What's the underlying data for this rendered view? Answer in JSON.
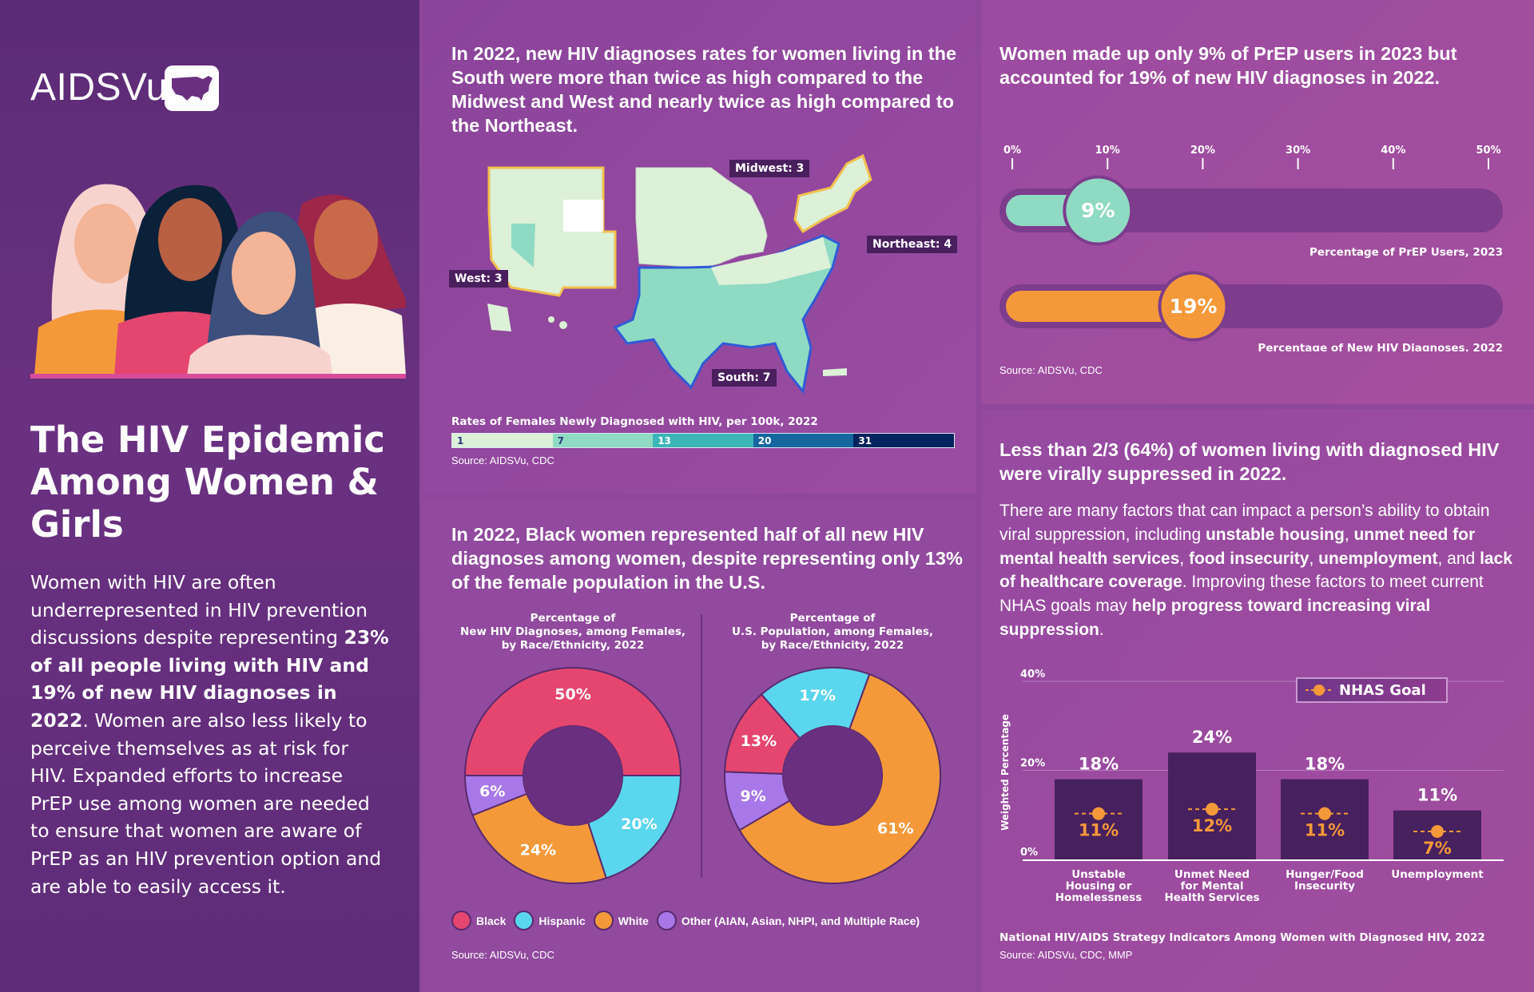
{
  "brand": {
    "logo_text": "AIDSVu",
    "logo_icon": "us-map-icon"
  },
  "left": {
    "title": "The HIV Epidemic Among Women & Girls",
    "paragraph": [
      {
        "text": "Women with HIV are often underrepresented in HIV prevention discussions despite representing ",
        "bold": false
      },
      {
        "text": "23% of all people living with HIV and 19% of new HIV diagnoses in 2022",
        "bold": true
      },
      {
        "text": ". Women are also less likely to perceive themselves as at risk for HIV. Expanded efforts to increase PrEP use among women are needed to ensure that women are aware of PrEP as an HIV prevention option and are able to easily access it.",
        "bold": false
      }
    ]
  },
  "map_section": {
    "heading": "In 2022, new HIV diagnoses rates for women living in the South were more than twice as high compared to the Midwest and West and nearly twice as high compared to the Northeast.",
    "regions": {
      "west": "West: 3",
      "midwest": "Midwest: 3",
      "northeast": "Northeast: 4",
      "south": "South: 7"
    },
    "legend_title": "Rates of Females Newly Diagnosed with HIV, per 100k, 2022",
    "legend": [
      {
        "label": "1",
        "color": "#dcf1d8",
        "text_color": "#2a3a80"
      },
      {
        "label": "7",
        "color": "#8fdac3",
        "text_color": "#2a3a80"
      },
      {
        "label": "13",
        "color": "#3db6b8",
        "text_color": "#ffffff"
      },
      {
        "label": "20",
        "color": "#1667a0",
        "text_color": "#ffffff"
      },
      {
        "label": "31",
        "color": "#03235e",
        "text_color": "#ffffff"
      }
    ],
    "source": "Source: AIDSVu, CDC"
  },
  "race_section": {
    "heading": "In 2022, Black women represented half of all new HIV diagnoses among women, despite representing only 13% of the female population in the U.S.",
    "legend": [
      {
        "label": "Black",
        "color": "#e5466f"
      },
      {
        "label": "Hispanic",
        "color": "#5ad6ee"
      },
      {
        "label": "White",
        "color": "#f4993a"
      },
      {
        "label": "Other (AIAN, Asian, NHPI, and Multiple Race)",
        "color": "#a878e8"
      }
    ],
    "source": "Source: AIDSVu, CDC"
  },
  "prep_section": {
    "heading": "Women made up only 9% of PrEP users in 2023 but accounted for 19% of new HIV diagnoses in 2022.",
    "source": "Source: AIDSVu, CDC"
  },
  "viral_section": {
    "heading": "Less than 2/3 (64%) of women living with diagnosed HIV were virally suppressed in 2022.",
    "paragraph": [
      {
        "text": "There are many factors that can impact a person’s ability to obtain viral suppression, including ",
        "bold": false
      },
      {
        "text": "unstable housing",
        "bold": true
      },
      {
        "text": ", ",
        "bold": false
      },
      {
        "text": "unmet need for mental health services",
        "bold": true
      },
      {
        "text": ", ",
        "bold": false
      },
      {
        "text": "food insecurity",
        "bold": true
      },
      {
        "text": ", ",
        "bold": false
      },
      {
        "text": "unemployment",
        "bold": true
      },
      {
        "text": ", and ",
        "bold": false
      },
      {
        "text": "lack of healthcare coverage",
        "bold": true
      },
      {
        "text": ". Improving these factors to meet current NHAS goals may ",
        "bold": false
      },
      {
        "text": "help progress toward increasing viral suppression",
        "bold": true
      },
      {
        "text": ".",
        "bold": false
      }
    ],
    "source": "Source: AIDSVu, CDC, MMP"
  },
  "chart_data": [
    {
      "type": "pie",
      "title": "Percentage of New HIV Diagnoses, among Females, by Race/Ethnicity, 2022",
      "title_lines": [
        "Percentage of",
        "New HIV Diagnoses, among Females,",
        "by Race/Ethnicity, 2022"
      ],
      "categories": [
        "Black",
        "Hispanic",
        "White",
        "Other"
      ],
      "values": [
        50,
        20,
        24,
        6
      ],
      "labels": [
        "50%",
        "20%",
        "24%",
        "6%"
      ],
      "colors": [
        "#e5466f",
        "#5ad6ee",
        "#f4993a",
        "#a878e8"
      ],
      "donut": true
    },
    {
      "type": "pie",
      "title": "Percentage of U.S. Population, among Females, by Race/Ethnicity, 2022",
      "title_lines": [
        "Percentage of",
        "U.S. Population, among Females,",
        "by Race/Ethnicity, 2022"
      ],
      "categories": [
        "White",
        "Other",
        "Black",
        "Hispanic"
      ],
      "values": [
        61,
        9,
        13,
        17
      ],
      "labels": [
        "61%",
        "9%",
        "13%",
        "17%"
      ],
      "colors": [
        "#f4993a",
        "#a878e8",
        "#e5466f",
        "#5ad6ee"
      ],
      "donut": true
    },
    {
      "type": "bar",
      "orientation": "horizontal",
      "xlim": [
        0,
        50
      ],
      "ticks": [
        "0%",
        "10%",
        "20%",
        "30%",
        "40%",
        "50%"
      ],
      "series": [
        {
          "name": "Percentage of PrEP Users, 2023",
          "value": 9,
          "label": "9%",
          "color": "#8fdac3"
        },
        {
          "name": "Percentage of New HIV Diagnoses, 2022",
          "value": 19,
          "label": "19%",
          "color": "#f4993a"
        }
      ]
    },
    {
      "type": "bar",
      "title": "National HIV/AIDS Strategy Indicators Among Women with Diagnosed HIV, 2022",
      "ylabel": "Weighted Percentage",
      "ylim": [
        0,
        40
      ],
      "yticks": [
        "0%",
        "20%",
        "40%"
      ],
      "categories": [
        "Unstable Housing or Homelessness",
        "Unmet Need for Mental Health Services",
        "Hunger/Food Insecurity",
        "Unemployment"
      ],
      "values": [
        18,
        24,
        18,
        11
      ],
      "value_labels": [
        "18%",
        "24%",
        "18%",
        "11%"
      ],
      "goal_name": "NHAS Goal",
      "goals": [
        11,
        12,
        11,
        7
      ],
      "goal_labels": [
        "11%",
        "12%",
        "11%",
        "7%"
      ],
      "bar_color": "#47205e",
      "goal_color": "#f4993a",
      "grid": true,
      "legend": "top-right"
    }
  ]
}
